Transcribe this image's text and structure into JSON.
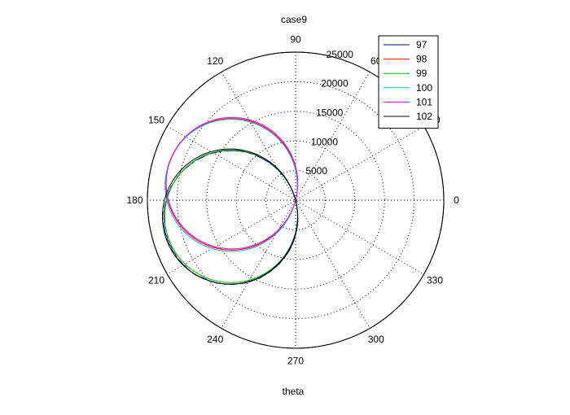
{
  "chart_data": {
    "type": "polar-line",
    "title": "case9",
    "xlabel": "theta",
    "angle_unit": "degrees",
    "r_max": 25000,
    "r_ticks": [
      5000,
      10000,
      15000,
      20000,
      25000
    ],
    "r_tick_labels": [
      "5000",
      "10000",
      "15000",
      "20000",
      "25000"
    ],
    "r_tick_label_angle_deg": 80,
    "angle_ticks": [
      0,
      30,
      60,
      90,
      120,
      150,
      180,
      210,
      240,
      270,
      300,
      330
    ],
    "angle_tick_labels": [
      "0",
      "30",
      "60",
      "90",
      "120",
      "150",
      "180",
      "210",
      "240",
      "270",
      "300",
      "330"
    ],
    "grid": true,
    "legend_position": "top-right",
    "curve_model": "r(theta) = max(0, -A * cos(theta - phi))",
    "series": [
      {
        "name": "97",
        "color": "#00007f",
        "A": 22600,
        "phi_deg": 15,
        "noise": 180
      },
      {
        "name": "98",
        "color": "#ff0000",
        "A": 22200,
        "phi_deg": -14,
        "noise": 0
      },
      {
        "name": "99",
        "color": "#00c000",
        "A": 22400,
        "phi_deg": 14,
        "noise": 0
      },
      {
        "name": "100",
        "color": "#00c0c0",
        "A": 22300,
        "phi_deg": -13,
        "noise": 0
      },
      {
        "name": "101",
        "color": "#ff00ff",
        "A": 22200,
        "phi_deg": -15,
        "noise": 0
      },
      {
        "name": "102",
        "color": "#000000",
        "A": 22800,
        "phi_deg": 14,
        "noise": 0
      }
    ]
  }
}
